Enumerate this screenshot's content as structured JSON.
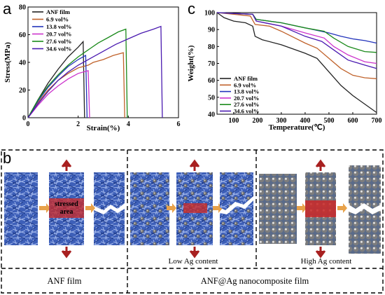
{
  "panel_letters": {
    "a": "a",
    "b": "b",
    "c": "c"
  },
  "chart_data": [
    {
      "type": "line",
      "xlabel": "Strain(%)",
      "ylabel": "Stress(MPa)",
      "xlim": [
        0,
        6
      ],
      "ylim": [
        0,
        80
      ],
      "xticks": [
        "0",
        "2",
        "4",
        "6"
      ],
      "yticks": [
        "0",
        "20",
        "40",
        "60",
        "80"
      ],
      "legend_position": "top-left",
      "grid": false,
      "series": [
        {
          "name": "ANF film",
          "color": "#222222",
          "points": [
            [
              0,
              0
            ],
            [
              0.4,
              13
            ],
            [
              0.8,
              25
            ],
            [
              1.2,
              35
            ],
            [
              1.6,
              44
            ],
            [
              2.0,
              51
            ],
            [
              2.2,
              55
            ]
          ]
        },
        {
          "name": "6.9 vol%",
          "color": "#c0622b",
          "points": [
            [
              0,
              0
            ],
            [
              0.4,
              11
            ],
            [
              0.8,
              20
            ],
            [
              1.2,
              27
            ],
            [
              1.6,
              32
            ],
            [
              2.0,
              36
            ],
            [
              2.4,
              38
            ],
            [
              2.6,
              40
            ],
            [
              3.0,
              42
            ],
            [
              3.4,
              45
            ],
            [
              3.8,
              47
            ]
          ]
        },
        {
          "name": "13.8 vol%",
          "color": "#2233bb",
          "points": [
            [
              0,
              0
            ],
            [
              0.4,
              12
            ],
            [
              0.8,
              22
            ],
            [
              1.2,
              30
            ],
            [
              1.6,
              37
            ],
            [
              2.0,
              42
            ],
            [
              2.3,
              45
            ]
          ]
        },
        {
          "name": "20.7 vol%",
          "color": "#cc33cc",
          "points": [
            [
              0,
              0
            ],
            [
              0.4,
              9
            ],
            [
              0.8,
              17
            ],
            [
              1.2,
              23
            ],
            [
              1.6,
              28
            ],
            [
              2.0,
              32
            ],
            [
              2.4,
              34
            ]
          ]
        },
        {
          "name": "27.6 vol%",
          "color": "#1a8a1a",
          "points": [
            [
              0,
              0
            ],
            [
              0.4,
              13
            ],
            [
              0.8,
              23
            ],
            [
              1.2,
              31
            ],
            [
              1.6,
              38
            ],
            [
              2.0,
              44
            ],
            [
              2.4,
              49
            ],
            [
              2.8,
              54
            ],
            [
              3.2,
              58
            ],
            [
              3.6,
              62
            ],
            [
              3.9,
              64
            ]
          ]
        },
        {
          "name": "34.6 vol%",
          "color": "#4a1ab0",
          "points": [
            [
              0,
              0
            ],
            [
              0.4,
              10
            ],
            [
              0.8,
              19
            ],
            [
              1.2,
              27
            ],
            [
              1.6,
              33
            ],
            [
              2.0,
              38
            ],
            [
              2.5,
              43
            ],
            [
              3.0,
              48
            ],
            [
              3.5,
              53
            ],
            [
              4.0,
              57
            ],
            [
              4.5,
              61
            ],
            [
              5.0,
              64
            ],
            [
              5.3,
              66
            ]
          ]
        }
      ]
    },
    {
      "type": "line",
      "xlabel": "Temperature(℃)",
      "ylabel": "Weight(%)",
      "xlim": [
        30,
        700
      ],
      "ylim": [
        40,
        100
      ],
      "xticks": [
        "100",
        "200",
        "300",
        "400",
        "500",
        "600",
        "700"
      ],
      "yticks": [
        "40",
        "50",
        "60",
        "70",
        "80",
        "90",
        "100"
      ],
      "legend_position": "bottom-left",
      "grid": false,
      "series": [
        {
          "name": "ANF film",
          "color": "#222222",
          "points": [
            [
              30,
              100
            ],
            [
              60,
              97
            ],
            [
              100,
              95
            ],
            [
              150,
              94
            ],
            [
              180,
              92
            ],
            [
              190,
              86
            ],
            [
              220,
              84
            ],
            [
              300,
              81
            ],
            [
              400,
              76
            ],
            [
              450,
              73
            ],
            [
              500,
              65
            ],
            [
              550,
              57
            ],
            [
              600,
              51
            ],
            [
              650,
              46
            ],
            [
              700,
              41
            ]
          ]
        },
        {
          "name": "6.9 vol%",
          "color": "#c0622b",
          "points": [
            [
              30,
              100
            ],
            [
              100,
              99
            ],
            [
              170,
              98
            ],
            [
              190,
              93
            ],
            [
              250,
              92
            ],
            [
              300,
              89
            ],
            [
              400,
              82
            ],
            [
              450,
              79
            ],
            [
              500,
              73
            ],
            [
              550,
              67
            ],
            [
              600,
              63
            ],
            [
              650,
              61.5
            ],
            [
              700,
              61
            ]
          ]
        },
        {
          "name": "13.8 vol%",
          "color": "#2233bb",
          "points": [
            [
              30,
              100
            ],
            [
              100,
              99.5
            ],
            [
              180,
              99
            ],
            [
              195,
              96
            ],
            [
              300,
              94
            ],
            [
              400,
              91
            ],
            [
              500,
              88
            ],
            [
              550,
              86
            ],
            [
              600,
              84.5
            ],
            [
              650,
              83.5
            ],
            [
              700,
              82
            ]
          ]
        },
        {
          "name": "20.7 vol%",
          "color": "#cc33cc",
          "points": [
            [
              30,
              100
            ],
            [
              100,
              99.5
            ],
            [
              180,
              99
            ],
            [
              195,
              95
            ],
            [
              300,
              92
            ],
            [
              400,
              88
            ],
            [
              480,
              85
            ],
            [
              520,
              80
            ],
            [
              580,
              75
            ],
            [
              650,
              71
            ],
            [
              700,
              70
            ]
          ]
        },
        {
          "name": "27.6 vol%",
          "color": "#1a8a1a",
          "points": [
            [
              30,
              100
            ],
            [
              100,
              99.5
            ],
            [
              180,
              99
            ],
            [
              195,
              96
            ],
            [
              300,
              94
            ],
            [
              400,
              91
            ],
            [
              480,
              89
            ],
            [
              520,
              85
            ],
            [
              580,
              80
            ],
            [
              650,
              77
            ],
            [
              700,
              76.5
            ]
          ]
        },
        {
          "name": "34.6 vol%",
          "color": "#4a1ab0",
          "points": [
            [
              30,
              100
            ],
            [
              100,
              99.5
            ],
            [
              180,
              99
            ],
            [
              195,
              95
            ],
            [
              300,
              92
            ],
            [
              400,
              86
            ],
            [
              470,
              83
            ],
            [
              520,
              78
            ],
            [
              580,
              72
            ],
            [
              650,
              69
            ],
            [
              700,
              67
            ]
          ]
        }
      ]
    }
  ],
  "schematic": {
    "stressed_area_line1": "stressed",
    "stressed_area_line2": "area",
    "low_ag_label": "Low Ag content",
    "high_ag_label": "High Ag content",
    "footer_left": "ANF film",
    "footer_right": "ANF@Ag nanocomposite film"
  }
}
